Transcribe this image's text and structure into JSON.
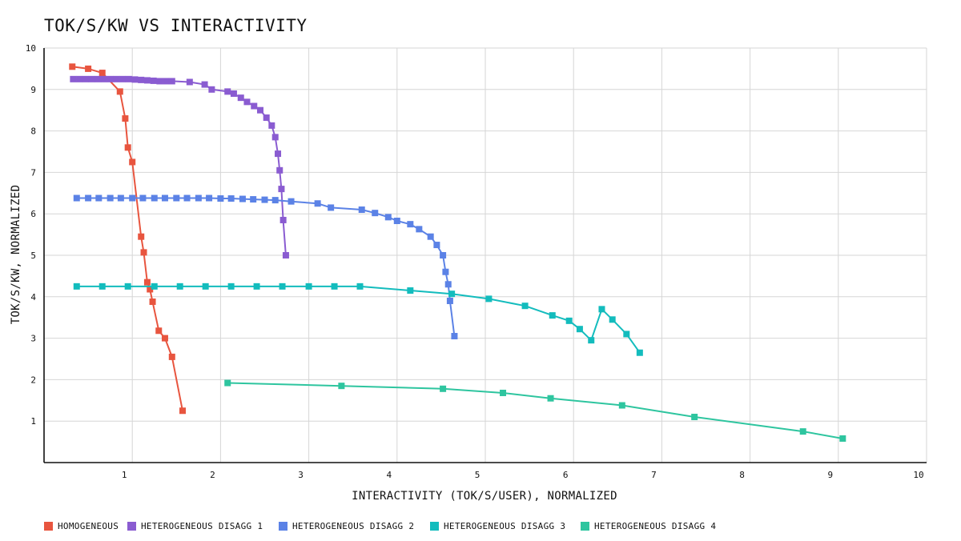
{
  "chart_data": {
    "type": "line",
    "title": "TOK/S/KW VS INTERACTIVITY",
    "xlabel": "INTERACTIVITY (TOK/S/USER), NORMALIZED",
    "ylabel": "TOK/S/KW, NORMALIZED",
    "xlim": [
      0,
      10
    ],
    "ylim": [
      0,
      10
    ],
    "xticks": [
      1,
      2,
      3,
      4,
      5,
      6,
      7,
      8,
      9,
      10
    ],
    "yticks": [
      1,
      2,
      3,
      4,
      5,
      6,
      7,
      8,
      9,
      10
    ],
    "grid": true,
    "legend": "bottom",
    "series": [
      {
        "name": "HOMOGENEOUS",
        "color": "#e8553f",
        "points": [
          [
            0.32,
            9.55
          ],
          [
            0.5,
            9.5
          ],
          [
            0.66,
            9.4
          ],
          [
            0.86,
            8.95
          ],
          [
            0.92,
            8.3
          ],
          [
            0.95,
            7.6
          ],
          [
            1.0,
            7.25
          ],
          [
            1.1,
            5.45
          ],
          [
            1.13,
            5.07
          ],
          [
            1.17,
            4.35
          ],
          [
            1.2,
            4.18
          ],
          [
            1.23,
            3.88
          ],
          [
            1.3,
            3.18
          ],
          [
            1.37,
            3.0
          ],
          [
            1.45,
            2.55
          ],
          [
            1.57,
            1.25
          ]
        ]
      },
      {
        "name": "HETEROGENEOUS DISAGG 1",
        "color": "#8a5cd1",
        "points": [
          [
            0.33,
            9.25
          ],
          [
            0.4,
            9.25
          ],
          [
            0.47,
            9.25
          ],
          [
            0.54,
            9.25
          ],
          [
            0.61,
            9.25
          ],
          [
            0.68,
            9.25
          ],
          [
            0.75,
            9.25
          ],
          [
            0.82,
            9.25
          ],
          [
            0.89,
            9.25
          ],
          [
            0.96,
            9.25
          ],
          [
            1.03,
            9.24
          ],
          [
            1.1,
            9.23
          ],
          [
            1.17,
            9.22
          ],
          [
            1.24,
            9.21
          ],
          [
            1.31,
            9.2
          ],
          [
            1.38,
            9.2
          ],
          [
            1.45,
            9.2
          ],
          [
            1.65,
            9.18
          ],
          [
            1.82,
            9.12
          ],
          [
            1.9,
            9.0
          ],
          [
            2.08,
            8.95
          ],
          [
            2.15,
            8.9
          ],
          [
            2.23,
            8.8
          ],
          [
            2.3,
            8.7
          ],
          [
            2.38,
            8.6
          ],
          [
            2.45,
            8.5
          ],
          [
            2.52,
            8.32
          ],
          [
            2.58,
            8.13
          ],
          [
            2.62,
            7.85
          ],
          [
            2.65,
            7.45
          ],
          [
            2.67,
            7.05
          ],
          [
            2.69,
            6.6
          ],
          [
            2.71,
            5.85
          ],
          [
            2.74,
            5.0
          ]
        ]
      },
      {
        "name": "HETEROGENEOUS DISAGG 2",
        "color": "#5b82e6",
        "points": [
          [
            0.37,
            6.38
          ],
          [
            0.5,
            6.38
          ],
          [
            0.62,
            6.38
          ],
          [
            0.75,
            6.38
          ],
          [
            0.87,
            6.38
          ],
          [
            1.0,
            6.38
          ],
          [
            1.12,
            6.38
          ],
          [
            1.25,
            6.38
          ],
          [
            1.37,
            6.38
          ],
          [
            1.5,
            6.38
          ],
          [
            1.62,
            6.38
          ],
          [
            1.75,
            6.38
          ],
          [
            1.87,
            6.38
          ],
          [
            2.0,
            6.37
          ],
          [
            2.12,
            6.37
          ],
          [
            2.25,
            6.36
          ],
          [
            2.37,
            6.35
          ],
          [
            2.5,
            6.34
          ],
          [
            2.62,
            6.33
          ],
          [
            2.8,
            6.3
          ],
          [
            3.1,
            6.25
          ],
          [
            3.25,
            6.15
          ],
          [
            3.6,
            6.1
          ],
          [
            3.75,
            6.02
          ],
          [
            3.9,
            5.92
          ],
          [
            4.0,
            5.83
          ],
          [
            4.15,
            5.75
          ],
          [
            4.25,
            5.63
          ],
          [
            4.38,
            5.45
          ],
          [
            4.45,
            5.25
          ],
          [
            4.52,
            5.0
          ],
          [
            4.55,
            4.6
          ],
          [
            4.58,
            4.3
          ],
          [
            4.6,
            3.9
          ],
          [
            4.65,
            3.05
          ]
        ]
      },
      {
        "name": "HETEROGENEOUS DISAGG 3",
        "color": "#13bcbd",
        "points": [
          [
            0.37,
            4.25
          ],
          [
            0.66,
            4.25
          ],
          [
            0.95,
            4.25
          ],
          [
            1.25,
            4.25
          ],
          [
            1.54,
            4.25
          ],
          [
            1.83,
            4.25
          ],
          [
            2.12,
            4.25
          ],
          [
            2.41,
            4.25
          ],
          [
            2.7,
            4.25
          ],
          [
            3.0,
            4.25
          ],
          [
            3.29,
            4.25
          ],
          [
            3.58,
            4.25
          ],
          [
            4.15,
            4.15
          ],
          [
            4.62,
            4.07
          ],
          [
            5.04,
            3.95
          ],
          [
            5.45,
            3.78
          ],
          [
            5.76,
            3.55
          ],
          [
            5.95,
            3.42
          ],
          [
            6.07,
            3.22
          ],
          [
            6.2,
            2.95
          ],
          [
            6.32,
            3.7
          ],
          [
            6.44,
            3.45
          ],
          [
            6.6,
            3.1
          ],
          [
            6.75,
            2.65
          ]
        ]
      },
      {
        "name": "HETEROGENEOUS DISAGG 4",
        "color": "#2ec59f",
        "points": [
          [
            2.08,
            1.92
          ],
          [
            3.37,
            1.85
          ],
          [
            4.52,
            1.78
          ],
          [
            5.2,
            1.68
          ],
          [
            5.74,
            1.55
          ],
          [
            6.55,
            1.38
          ],
          [
            7.37,
            1.1
          ],
          [
            8.6,
            0.75
          ],
          [
            9.05,
            0.58
          ]
        ]
      }
    ]
  }
}
